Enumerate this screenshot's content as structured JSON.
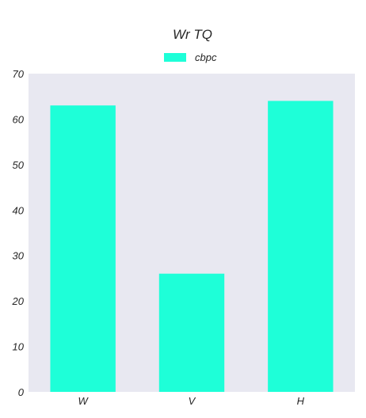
{
  "chart_data": {
    "type": "bar",
    "title": "Wr TQ",
    "categories": [
      "W",
      "V",
      "H"
    ],
    "series": [
      {
        "name": "cbpc",
        "values": [
          63,
          26,
          64
        ]
      }
    ],
    "ylim": [
      0,
      70
    ],
    "yticks": [
      0,
      10,
      20,
      30,
      40,
      50,
      60,
      70
    ],
    "xlabel": "",
    "ylabel": "",
    "grid": false,
    "legend_position": "top-center",
    "colors": {
      "bar": "#1effd8",
      "plot_background": "#e8e8f1",
      "text": "#262626"
    }
  }
}
